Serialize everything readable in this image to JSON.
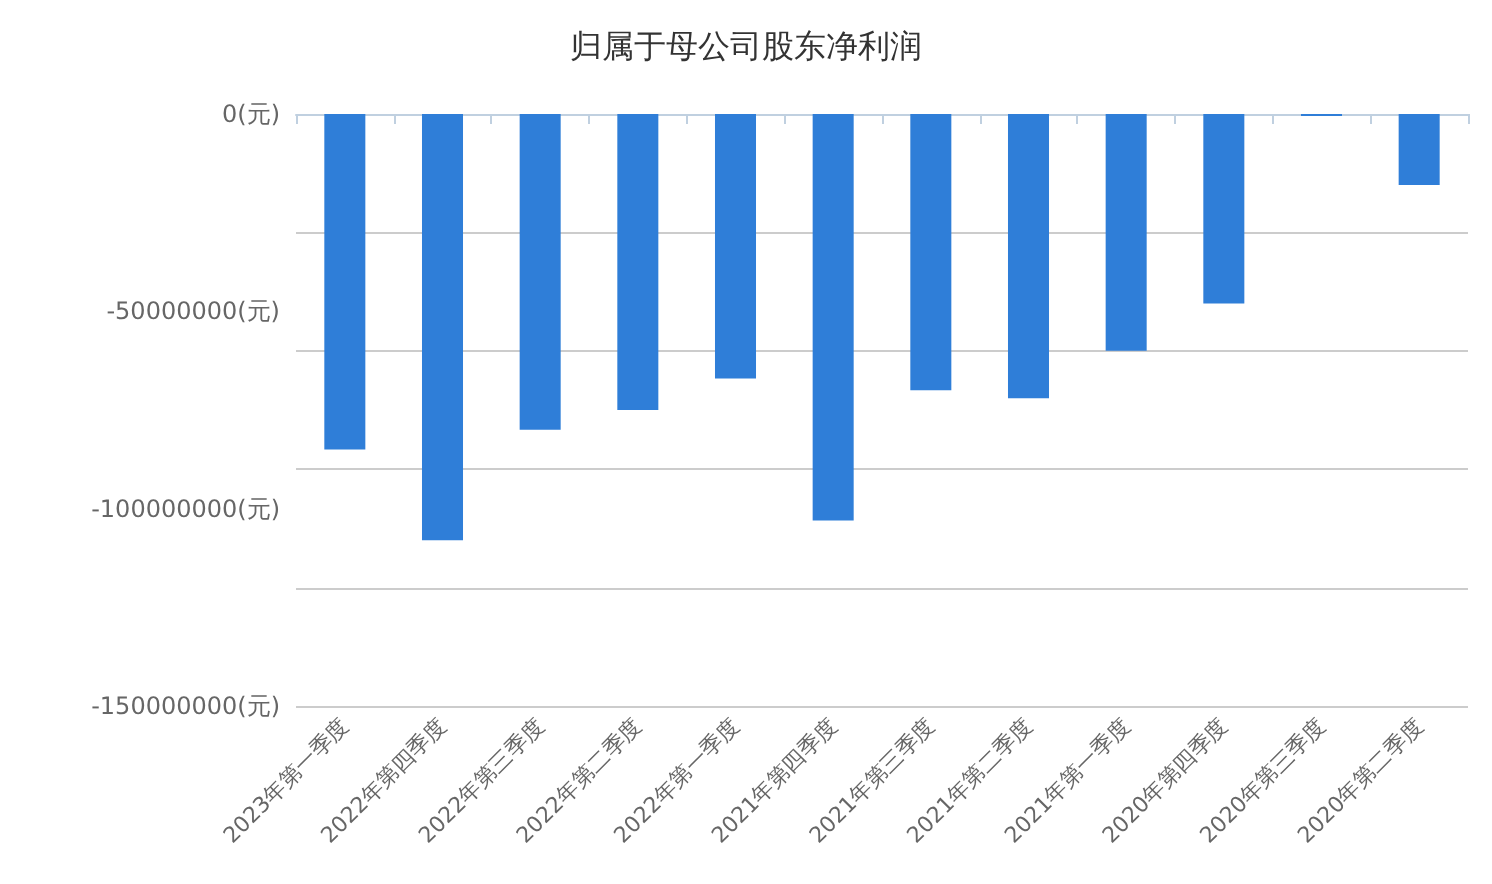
{
  "chart_data": {
    "type": "bar",
    "title": "归属于母公司股东净利润",
    "categories": [
      "2023年第一季度",
      "2022年第四季度",
      "2022年第三季度",
      "2022年第二季度",
      "2022年第一季度",
      "2021年第四季度",
      "2021年第三季度",
      "2021年第二季度",
      "2021年第一季度",
      "2020年第四季度",
      "2020年第三季度",
      "2020年第二季度"
    ],
    "values": [
      -85000000,
      -108000000,
      -80000000,
      -75000000,
      -67000000,
      -103000000,
      -70000000,
      -72000000,
      -60000000,
      -48000000,
      -500000,
      -18000000
    ],
    "color": "#2f7ed8",
    "ylim": [
      -150000000,
      0
    ],
    "yticks": [
      {
        "value": -150000000,
        "label": "-150000000(元)"
      },
      {
        "value": -100000000,
        "label": "-100000000(元)"
      },
      {
        "value": -50000000,
        "label": "-50000000(元)"
      },
      {
        "value": 0,
        "label": "0(元)"
      }
    ],
    "grid": "y"
  }
}
